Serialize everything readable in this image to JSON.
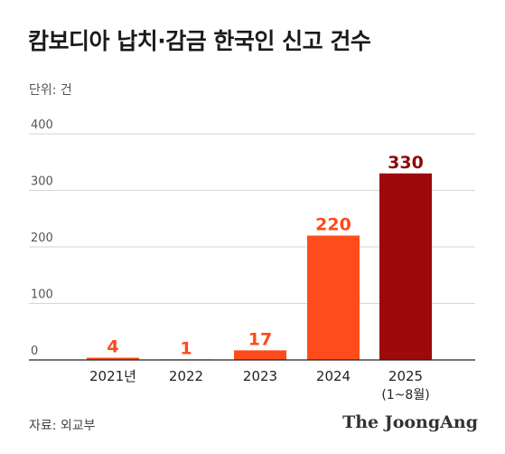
{
  "title": "캄보디아 납치·감금 한국인 신고 건수",
  "unit": "단위: 건",
  "source": "자료: 외교부",
  "brand": "The JoongAng",
  "colors": {
    "bar": "#fe4c1c",
    "bar_highlight": "#9c0a0a",
    "label": "#ff4a1a",
    "label_highlight": "#8e0a0a",
    "grid": "#d6d6d6"
  },
  "chart_data": {
    "type": "bar",
    "categories": [
      "2021년",
      "2022",
      "2023",
      "2024",
      "2025"
    ],
    "category_sublabels": [
      "",
      "",
      "",
      "",
      "(1~8월)"
    ],
    "values": [
      4,
      1,
      17,
      220,
      330
    ],
    "data_labels": [
      "4",
      "1",
      "17",
      "220",
      "330"
    ],
    "highlight_index": 4,
    "ylim": [
      0,
      400
    ],
    "yticks": [
      0,
      100,
      200,
      300,
      400
    ],
    "ytick_labels": [
      "0",
      "100",
      "200",
      "300",
      "400"
    ],
    "grid": true,
    "legend": "none"
  }
}
